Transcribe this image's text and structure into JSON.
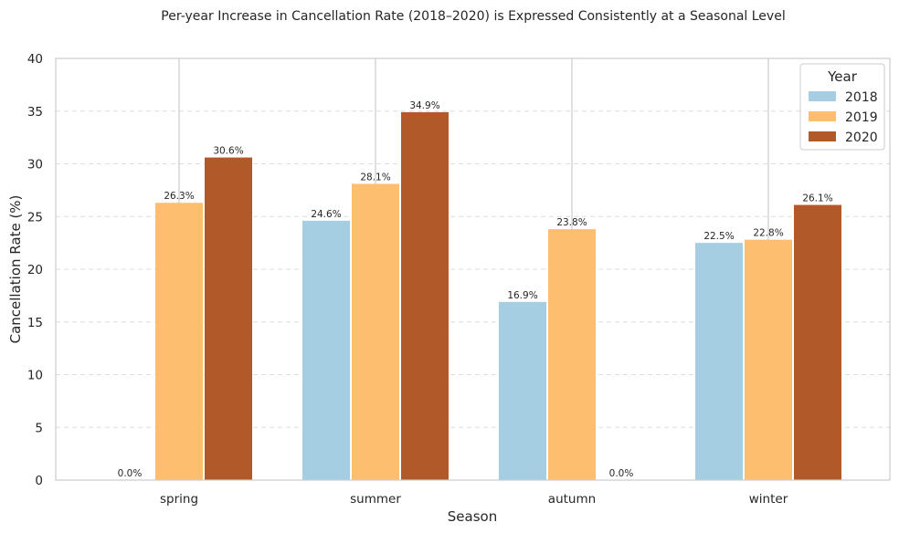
{
  "chart_data": {
    "type": "bar",
    "title": "Per-year Increase in Cancellation Rate (2018–2020) is Expressed Consistently at a Seasonal Level",
    "xlabel": "Season",
    "ylabel": "Cancellation Rate (%)",
    "categories": [
      "spring",
      "summer",
      "autumn",
      "winter"
    ],
    "ylim": [
      0,
      40
    ],
    "yticks": [
      "0",
      "5",
      "10",
      "15",
      "20",
      "25",
      "30",
      "35",
      "40"
    ],
    "grid": "horizontal dashed",
    "legend": {
      "title": "Year",
      "placement": "top-right"
    },
    "series": [
      {
        "name": "2018",
        "color": "#a6cee3",
        "values": [
          0.0,
          24.6,
          16.9,
          22.5
        ],
        "labels": [
          "0.0%",
          "24.6%",
          "16.9%",
          "22.5%"
        ]
      },
      {
        "name": "2019",
        "color": "#fdbf6f",
        "values": [
          26.3,
          28.1,
          23.8,
          22.8
        ],
        "labels": [
          "26.3%",
          "28.1%",
          "23.8%",
          "22.8%"
        ]
      },
      {
        "name": "2020",
        "color": "#b15928",
        "values": [
          30.6,
          34.9,
          0.0,
          26.1
        ],
        "labels": [
          "30.6%",
          "34.9%",
          "0.0%",
          "26.1%"
        ]
      }
    ]
  }
}
